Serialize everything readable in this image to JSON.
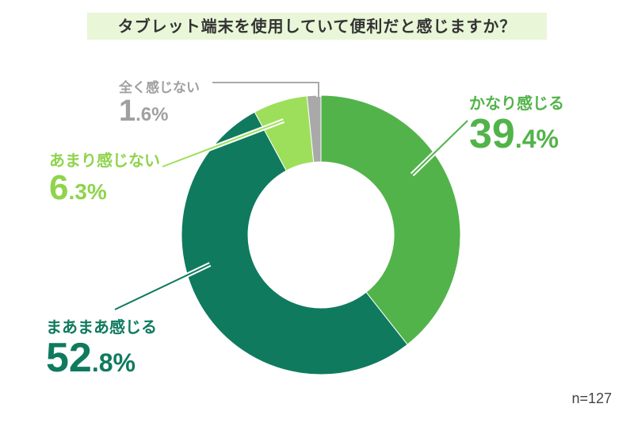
{
  "chart_data": {
    "type": "pie",
    "title": "タブレット端末を使用していて便利だと感じますか？",
    "sample_size": "n=127",
    "slices": [
      {
        "label": "かなり感じる",
        "value": 39.4,
        "int": "39",
        "dec": ".4",
        "color": "#52b34a"
      },
      {
        "label": "まあまあ感じる",
        "value": 52.8,
        "int": "52",
        "dec": ".8",
        "color": "#0f7a5e"
      },
      {
        "label": "あまり感じない",
        "value": 6.3,
        "int": "6",
        "dec": ".3",
        "color": "#9ddf5a"
      },
      {
        "label": "全く感じない",
        "value": 1.6,
        "int": "1",
        "dec": ".6",
        "color": "#a9a9a9"
      }
    ]
  }
}
